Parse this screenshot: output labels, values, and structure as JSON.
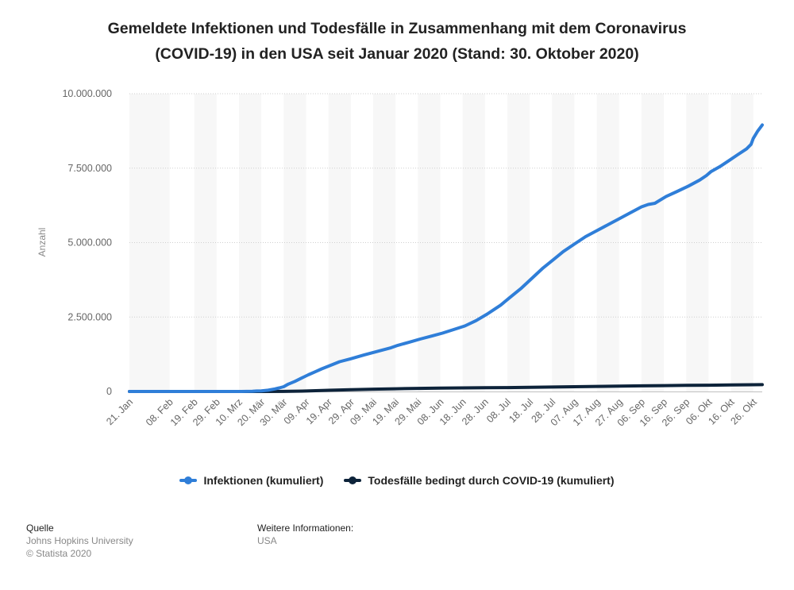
{
  "title_line1": "Gemeldete Infektionen und Todesfälle in Zusammenhang mit dem Coronavirus",
  "title_line2": "(COVID-19) in den USA seit Januar 2020 (Stand: 30. Oktober 2020)",
  "footer": {
    "source_heading": "Quelle",
    "source_name": "Johns Hopkins University",
    "copyright": "© Statista 2020",
    "info_heading": "Weitere Informationen:",
    "info_value": "USA"
  },
  "colors": {
    "infections": "#2f7ed8",
    "deaths": "#0d233a",
    "band": "#f7f7f7",
    "grid": "#cfcfcf",
    "axis_text": "#666666"
  },
  "chart_data": {
    "type": "line",
    "title": "Gemeldete Infektionen und Todesfälle in Zusammenhang mit dem Coronavirus (COVID-19) in den USA seit Januar 2020 (Stand: 30. Oktober 2020)",
    "xlabel": "",
    "ylabel": "Anzahl",
    "ylim": [
      0,
      10000000
    ],
    "y_ticks": [
      0,
      2500000,
      5000000,
      7500000,
      10000000
    ],
    "y_tick_labels": [
      "0",
      "2.500.000",
      "5.000.000",
      "7.500.000",
      "10.000.000"
    ],
    "x_range_days": [
      0,
      283
    ],
    "x_ticks": [
      {
        "day": 0,
        "label": "21. Jan"
      },
      {
        "day": 18,
        "label": "08. Feb"
      },
      {
        "day": 29,
        "label": "19. Feb"
      },
      {
        "day": 39,
        "label": "29. Feb"
      },
      {
        "day": 49,
        "label": "10. Mrz"
      },
      {
        "day": 59,
        "label": "20. Mär"
      },
      {
        "day": 69,
        "label": "30. Mär"
      },
      {
        "day": 79,
        "label": "09. Apr"
      },
      {
        "day": 89,
        "label": "19. Apr"
      },
      {
        "day": 99,
        "label": "29. Apr"
      },
      {
        "day": 109,
        "label": "09. Mai"
      },
      {
        "day": 119,
        "label": "19. Mai"
      },
      {
        "day": 129,
        "label": "29. Mai"
      },
      {
        "day": 139,
        "label": "08. Jun"
      },
      {
        "day": 149,
        "label": "18. Jun"
      },
      {
        "day": 159,
        "label": "28. Jun"
      },
      {
        "day": 169,
        "label": "08. Jul"
      },
      {
        "day": 179,
        "label": "18. Jul"
      },
      {
        "day": 189,
        "label": "28. Jul"
      },
      {
        "day": 199,
        "label": "07. Aug"
      },
      {
        "day": 209,
        "label": "17. Aug"
      },
      {
        "day": 219,
        "label": "27. Aug"
      },
      {
        "day": 229,
        "label": "06. Sep"
      },
      {
        "day": 239,
        "label": "16. Sep"
      },
      {
        "day": 249,
        "label": "26. Sep"
      },
      {
        "day": 259,
        "label": "06. Okt"
      },
      {
        "day": 269,
        "label": "16. Okt"
      },
      {
        "day": 279,
        "label": "26. Okt"
      }
    ],
    "series": [
      {
        "name": "Infektionen (kumuliert)",
        "color": "#2f7ed8",
        "points": [
          [
            0,
            1
          ],
          [
            30,
            15
          ],
          [
            45,
            100
          ],
          [
            50,
            1000
          ],
          [
            55,
            5000
          ],
          [
            57,
            15000
          ],
          [
            59,
            20000
          ],
          [
            62,
            43000
          ],
          [
            65,
            85000
          ],
          [
            67,
            120000
          ],
          [
            69,
            160000
          ],
          [
            71,
            245000
          ],
          [
            74,
            340000
          ],
          [
            77,
            450000
          ],
          [
            80,
            560000
          ],
          [
            83,
            660000
          ],
          [
            86,
            760000
          ],
          [
            90,
            880000
          ],
          [
            94,
            1000000
          ],
          [
            99,
            1100000
          ],
          [
            105,
            1230000
          ],
          [
            111,
            1350000
          ],
          [
            117,
            1470000
          ],
          [
            120,
            1550000
          ],
          [
            125,
            1650000
          ],
          [
            130,
            1760000
          ],
          [
            135,
            1860000
          ],
          [
            140,
            1960000
          ],
          [
            145,
            2080000
          ],
          [
            150,
            2200000
          ],
          [
            155,
            2380000
          ],
          [
            160,
            2600000
          ],
          [
            163,
            2750000
          ],
          [
            166,
            2900000
          ],
          [
            170,
            3150000
          ],
          [
            175,
            3450000
          ],
          [
            180,
            3800000
          ],
          [
            185,
            4150000
          ],
          [
            190,
            4450000
          ],
          [
            194,
            4700000
          ],
          [
            199,
            4950000
          ],
          [
            204,
            5200000
          ],
          [
            209,
            5400000
          ],
          [
            214,
            5600000
          ],
          [
            219,
            5800000
          ],
          [
            224,
            6000000
          ],
          [
            229,
            6200000
          ],
          [
            232,
            6280000
          ],
          [
            235,
            6320000
          ],
          [
            240,
            6550000
          ],
          [
            245,
            6720000
          ],
          [
            250,
            6900000
          ],
          [
            255,
            7100000
          ],
          [
            258,
            7250000
          ],
          [
            260,
            7380000
          ],
          [
            264,
            7550000
          ],
          [
            268,
            7750000
          ],
          [
            272,
            7950000
          ],
          [
            276,
            8150000
          ],
          [
            278,
            8300000
          ],
          [
            279,
            8500000
          ],
          [
            281,
            8750000
          ],
          [
            283,
            8950000
          ]
        ]
      },
      {
        "name": "Todesfälle bedingt durch COVID-19 (kumuliert)",
        "color": "#0d233a",
        "points": [
          [
            0,
            0
          ],
          [
            38,
            0
          ],
          [
            60,
            500
          ],
          [
            69,
            3000
          ],
          [
            79,
            16000
          ],
          [
            89,
            40000
          ],
          [
            99,
            60000
          ],
          [
            109,
            77000
          ],
          [
            119,
            90000
          ],
          [
            129,
            103000
          ],
          [
            139,
            112000
          ],
          [
            149,
            119000
          ],
          [
            159,
            126000
          ],
          [
            169,
            132000
          ],
          [
            179,
            140000
          ],
          [
            189,
            149000
          ],
          [
            199,
            161000
          ],
          [
            209,
            171000
          ],
          [
            219,
            180000
          ],
          [
            229,
            188000
          ],
          [
            239,
            197000
          ],
          [
            249,
            205000
          ],
          [
            259,
            212000
          ],
          [
            269,
            219000
          ],
          [
            279,
            226000
          ],
          [
            283,
            229000
          ]
        ]
      }
    ],
    "legend_position": "bottom"
  }
}
